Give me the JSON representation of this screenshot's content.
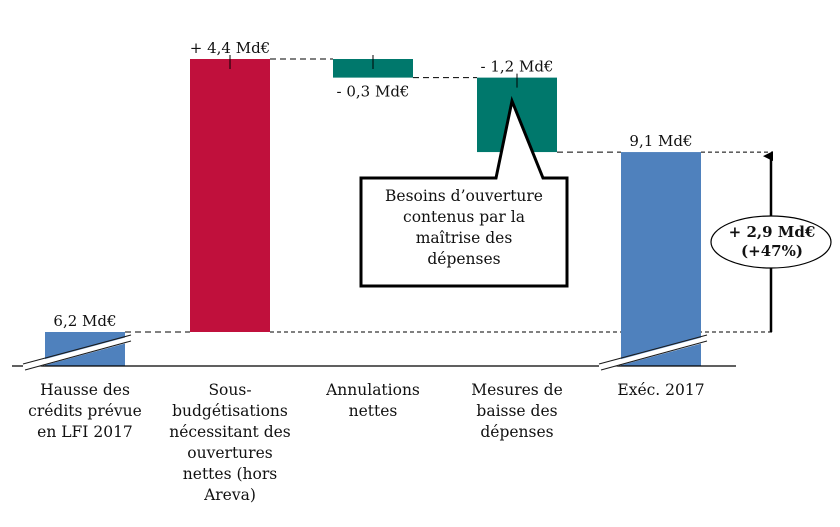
{
  "chart_data": {
    "type": "waterfall",
    "title": "",
    "xlabel": "",
    "ylabel": "",
    "unit": "Md€",
    "grid": false,
    "categories": [
      "Hausse des\ncrédits prévue\nen LFI 2017",
      "Sous-\nbudgétisations\nnécessitant des\nouvertures\nnettes (hors\nAreva)",
      "Annulations\nnettes",
      "Mesures de\nbaisse des\ndépenses",
      "Exéc. 2017"
    ],
    "values": [
      6.2,
      4.4,
      -0.3,
      -1.2,
      9.1
    ],
    "kinds": [
      "total",
      "delta",
      "delta",
      "delta",
      "total"
    ],
    "data_labels": [
      "6,2 Md€",
      "+ 4,4 Md€",
      "- 0,3 Md€",
      "- 1,2 Md€",
      "9,1 Md€"
    ],
    "colors": {
      "total": "#4f81bd",
      "increase": "#c0103c",
      "decrease": "#00786c"
    },
    "axis_break": true,
    "annotations": [
      {
        "type": "callout",
        "text": "Besoins d’ouverture\ncontenus  par la\nmaîtrise des\ndépenses",
        "points_to": [
          "Annulations nettes",
          "Mesures de baisse des dépenses"
        ]
      },
      {
        "type": "difference-arrow",
        "text": "+ 2,9 Md€\n(+47%)",
        "from": 6.2,
        "to": 9.1,
        "value": 2.9,
        "percent": 47
      }
    ]
  }
}
